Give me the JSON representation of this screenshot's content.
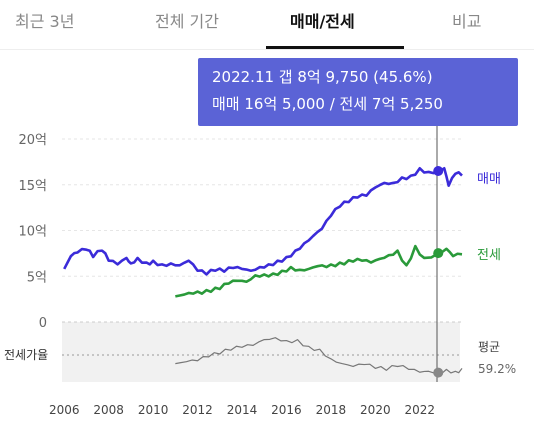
{
  "tabs": [
    {
      "label": "최근 3년"
    },
    {
      "label": "전체 기간"
    },
    {
      "label": "매매/전세"
    },
    {
      "label": "비교"
    }
  ],
  "active_tab": "매매/전세",
  "tooltip": {
    "line1": "2022.11  갭 8억 9,750 (45.6%)",
    "line2": "매매 16억 5,000 / 전세 7억 5,250"
  },
  "colors": {
    "sale": "#3b2bd9",
    "jeonse": "#2a9a3a",
    "ratio": "#777777",
    "tooltip": "#5b63d6"
  },
  "chart_data": {
    "type": "line",
    "title": "",
    "x_ticks": [
      "2006",
      "2008",
      "2010",
      "2012",
      "2014",
      "2016",
      "2018",
      "2020",
      "2022"
    ],
    "y_ticks": [
      "20억",
      "15억",
      "10억",
      "5억",
      "0"
    ],
    "xlim": [
      2005.9,
      2023.9
    ],
    "ylim": [
      0,
      20
    ],
    "series": [
      {
        "name": "매매",
        "x": [
          2006.0,
          2006.3,
          2006.6,
          2007.0,
          2007.3,
          2007.7,
          2008.0,
          2008.4,
          2008.8,
          2009.0,
          2009.3,
          2009.7,
          2010.0,
          2010.4,
          2010.8,
          2011.2,
          2011.6,
          2012.0,
          2012.4,
          2012.8,
          2013.2,
          2013.6,
          2014.0,
          2014.4,
          2014.8,
          2015.2,
          2015.6,
          2016.0,
          2016.4,
          2016.8,
          2017.2,
          2017.6,
          2018.0,
          2018.4,
          2018.8,
          2019.2,
          2019.6,
          2020.0,
          2020.4,
          2020.8,
          2021.2,
          2021.6,
          2022.0,
          2022.4,
          2022.83,
          2023.1,
          2023.3,
          2023.6,
          2023.9
        ],
        "values": [
          5.8,
          7.2,
          7.6,
          7.9,
          7.1,
          7.8,
          6.7,
          6.3,
          7.0,
          6.4,
          7.0,
          6.5,
          6.7,
          6.3,
          6.4,
          6.2,
          6.7,
          5.6,
          5.2,
          5.6,
          5.5,
          5.9,
          5.8,
          5.6,
          6.0,
          6.3,
          6.7,
          7.1,
          7.8,
          8.6,
          9.4,
          10.2,
          11.6,
          12.6,
          13.1,
          13.6,
          13.8,
          14.7,
          15.2,
          15.2,
          15.8,
          16.0,
          16.8,
          16.4,
          16.5,
          16.8,
          14.9,
          16.2,
          16.0
        ]
      },
      {
        "name": "전세",
        "x": [
          2011.0,
          2011.4,
          2011.8,
          2012.2,
          2012.6,
          2013.0,
          2013.4,
          2013.8,
          2014.2,
          2014.6,
          2015.0,
          2015.4,
          2015.8,
          2016.2,
          2016.6,
          2017.0,
          2017.4,
          2017.8,
          2018.2,
          2018.6,
          2019.0,
          2019.4,
          2019.8,
          2020.2,
          2020.6,
          2021.0,
          2021.4,
          2021.8,
          2022.2,
          2022.83,
          2023.2,
          2023.5,
          2023.9
        ],
        "values": [
          2.8,
          3.0,
          3.1,
          3.1,
          3.3,
          3.6,
          4.2,
          4.5,
          4.4,
          5.1,
          5.2,
          5.3,
          5.6,
          6.0,
          5.7,
          5.8,
          6.1,
          6.0,
          6.1,
          6.3,
          6.6,
          6.7,
          6.5,
          6.9,
          7.3,
          7.8,
          6.2,
          8.3,
          7.0,
          7.5,
          8.0,
          7.2,
          7.4
        ]
      },
      {
        "name": "전세가율",
        "x": [
          2011.0,
          2011.5,
          2012.0,
          2012.5,
          2013.0,
          2013.5,
          2014.0,
          2014.5,
          2015.0,
          2015.5,
          2016.0,
          2016.5,
          2017.0,
          2017.5,
          2018.0,
          2018.5,
          2019.0,
          2019.5,
          2020.0,
          2020.5,
          2021.0,
          2021.5,
          2022.0,
          2022.4,
          2022.83,
          2023.2,
          2023.6,
          2023.9
        ],
        "values": [
          55,
          57,
          58,
          62,
          65,
          69,
          72,
          74,
          80,
          82,
          79,
          80,
          73,
          70,
          60,
          55,
          52,
          54,
          50,
          48,
          52,
          49,
          46,
          47,
          45.6,
          49,
          47,
          50
        ]
      }
    ],
    "ratio_label": "전세가율",
    "avg_label": "평균",
    "avg_value": "59.2%",
    "highlight_x": "2022.11",
    "legend": [
      "매매",
      "전세"
    ],
    "legend_position": "right"
  }
}
